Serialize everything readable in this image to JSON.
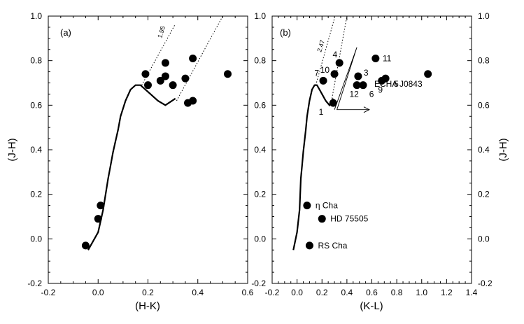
{
  "chart_data": [
    {
      "type": "scatter",
      "panel_label": "(a)",
      "xlabel": "(H-K)",
      "ylabel": "(J-H)",
      "xlim": [
        -0.2,
        0.6
      ],
      "ylim": [
        -0.2,
        1.0
      ],
      "x_ticks": [
        -0.2,
        0.0,
        0.2,
        0.4,
        0.6
      ],
      "x_tick_labels": [
        "-0.2",
        "0.0",
        "0.2",
        "0.4",
        "0.6"
      ],
      "y_ticks": [
        -0.2,
        0.0,
        0.2,
        0.4,
        0.6,
        0.8,
        1.0
      ],
      "y_tick_labels": [
        "-0.2",
        "0.0",
        "0.2",
        "0.4",
        "0.6",
        "0.8",
        "1.0"
      ],
      "reddening_label": "1.95",
      "series": [
        {
          "name": "stars",
          "x": [
            -0.05,
            0.0,
            0.01,
            0.19,
            0.2,
            0.25,
            0.27,
            0.27,
            0.3,
            0.35,
            0.36,
            0.38,
            0.38,
            0.52
          ],
          "y": [
            -0.03,
            0.09,
            0.15,
            0.74,
            0.69,
            0.71,
            0.73,
            0.79,
            0.69,
            0.72,
            0.61,
            0.81,
            0.62,
            0.74
          ]
        }
      ],
      "locus": {
        "x": [
          -0.04,
          0.0,
          0.02,
          0.04,
          0.05,
          0.06,
          0.07,
          0.08,
          0.09,
          0.11,
          0.13,
          0.15,
          0.17,
          0.19,
          0.21,
          0.24,
          0.27,
          0.31
        ],
        "y": [
          -0.05,
          0.03,
          0.13,
          0.27,
          0.33,
          0.39,
          0.44,
          0.49,
          0.55,
          0.62,
          0.67,
          0.69,
          0.69,
          0.67,
          0.65,
          0.62,
          0.6,
          0.63
        ]
      },
      "reddening_lines": [
        {
          "x": [
            0.175,
            0.31
          ],
          "y": [
            0.69,
            0.965
          ]
        },
        {
          "x": [
            0.315,
            0.5
          ],
          "y": [
            0.62,
            1.0
          ]
        }
      ]
    },
    {
      "type": "scatter",
      "panel_label": "(b)",
      "xlabel": "(K-L)",
      "ylabel": "(J-H)",
      "xlim": [
        -0.2,
        1.4
      ],
      "ylim": [
        -0.2,
        1.0
      ],
      "x_ticks": [
        -0.2,
        0.0,
        0.2,
        0.4,
        0.6,
        0.8,
        1.0,
        1.2,
        1.4
      ],
      "x_tick_labels": [
        "-0.2",
        "0.0",
        "0.2",
        "0.4",
        "0.6",
        "0.8",
        "1.0",
        "1.2",
        "1.4"
      ],
      "y_ticks": [
        -0.2,
        0.0,
        0.2,
        0.4,
        0.6,
        0.8,
        1.0
      ],
      "y_tick_labels": [
        "-0.2",
        "0.0",
        "0.2",
        "0.4",
        "0.6",
        "0.8",
        "1.0"
      ],
      "reddening_label": "2.47",
      "series": [
        {
          "name": "stars",
          "points": [
            {
              "x": 0.29,
              "y": 0.61,
              "label": "1"
            },
            {
              "x": 0.34,
              "y": 0.79,
              "label": "4"
            },
            {
              "x": 0.3,
              "y": 0.74,
              "label": "10"
            },
            {
              "x": 0.21,
              "y": 0.71,
              "label": "7"
            },
            {
              "x": 0.49,
              "y": 0.73,
              "label": "3"
            },
            {
              "x": 0.48,
              "y": 0.69,
              "label": "12"
            },
            {
              "x": 0.53,
              "y": 0.69,
              "label": "6"
            },
            {
              "x": 0.63,
              "y": 0.81,
              "label": "11"
            },
            {
              "x": 0.68,
              "y": 0.71,
              "label": "9"
            },
            {
              "x": 0.71,
              "y": 0.72,
              "label": "5"
            },
            {
              "x": 1.05,
              "y": 0.74,
              "label": "ECHA J0843"
            },
            {
              "x": 0.08,
              "y": 0.15,
              "label": "η Cha"
            },
            {
              "x": 0.2,
              "y": 0.09,
              "label": "HD 75505"
            },
            {
              "x": 0.1,
              "y": -0.03,
              "label": "RS Cha"
            }
          ]
        }
      ],
      "locus": {
        "x": [
          -0.03,
          0.0,
          0.02,
          0.03,
          0.04,
          0.05,
          0.06,
          0.07,
          0.08,
          0.1,
          0.12,
          0.14,
          0.16,
          0.18,
          0.2,
          0.23,
          0.26,
          0.29
        ],
        "y": [
          -0.05,
          0.03,
          0.13,
          0.27,
          0.33,
          0.39,
          0.44,
          0.49,
          0.55,
          0.62,
          0.67,
          0.69,
          0.69,
          0.67,
          0.65,
          0.62,
          0.6,
          0.63
        ]
      },
      "reddening_lines": [
        {
          "x": [
            0.15,
            0.3
          ],
          "y": [
            0.69,
            0.99
          ]
        },
        {
          "x": [
            0.28,
            0.4
          ],
          "y": [
            0.63,
            1.0
          ]
        }
      ],
      "vector_arrow": {
        "x": [
          0.3,
          0.48,
          0.32,
          0.58
        ],
        "y": [
          0.58,
          0.86,
          0.58,
          0.58
        ]
      }
    }
  ]
}
